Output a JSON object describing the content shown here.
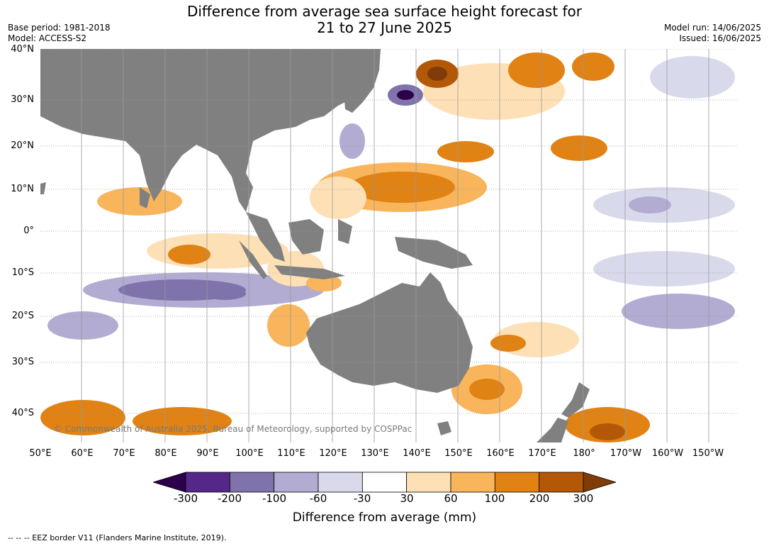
{
  "title_line1": "Difference from average sea surface height forecast for",
  "title_line2": "21 to 27 June 2025",
  "base_period": "Base period: 1981-2018",
  "model": "Model: ACCESS-S2",
  "model_run": "Model run: 14/06/2025",
  "issued": "Issued: 16/06/2025",
  "copyright": "© Commonwealth of Australia 2025, Bureau of Meteorology, supported by COSPPac",
  "footnote": "--  --  -- EEZ border V11 (Flanders Marine Institute, 2019).",
  "lat_labels": [
    "40°N",
    "30°N",
    "20°N",
    "10°N",
    "0°",
    "10°S",
    "20°S",
    "30°S",
    "40°S"
  ],
  "lon_labels": [
    "50°E",
    "60°E",
    "70°E",
    "80°E",
    "90°E",
    "100°E",
    "110°E",
    "120°E",
    "130°E",
    "140°E",
    "150°E",
    "160°E",
    "170°E",
    "180°",
    "170°W",
    "160°W",
    "150°W"
  ],
  "colorbar": {
    "label": "Difference from average (mm)",
    "ticks": [
      "-300",
      "-200",
      "-100",
      "-60",
      "-30",
      "30",
      "60",
      "100",
      "200",
      "300"
    ],
    "colors": [
      "#2d004b",
      "#542788",
      "#8073ac",
      "#b2abd2",
      "#d8daeb",
      "#ffffff",
      "#fee0b6",
      "#f8b55c",
      "#e08214",
      "#b35806",
      "#7f3b08"
    ]
  }
}
